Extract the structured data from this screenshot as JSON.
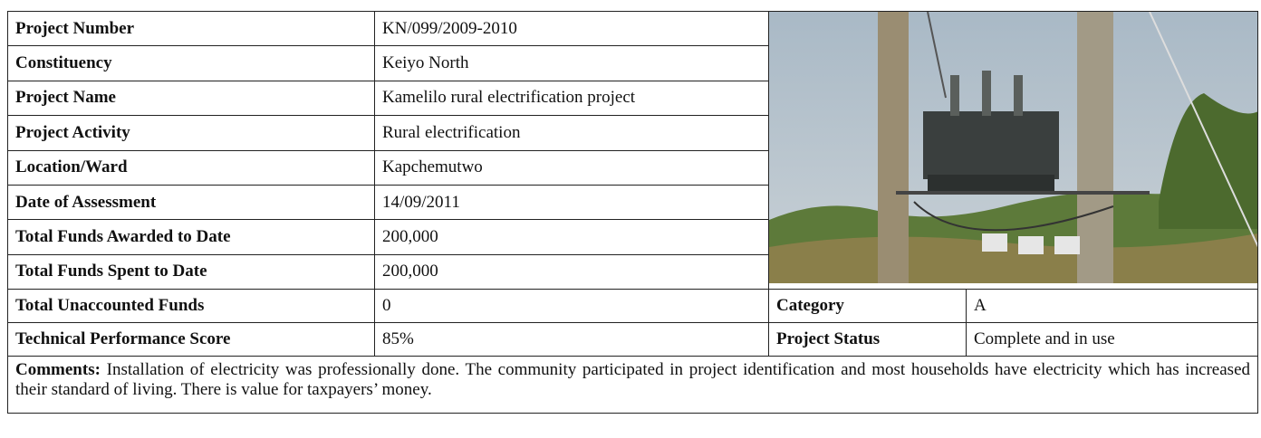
{
  "table": {
    "rows": [
      {
        "label": "Project Number",
        "value": "KN/099/2009-2010"
      },
      {
        "label": "Constituency",
        "value": "Keiyo North"
      },
      {
        "label": "Project Name",
        "value": "Kamelilo rural electrification project"
      },
      {
        "label": "Project Activity",
        "value": "Rural electrification"
      },
      {
        "label": "Location/Ward",
        "value": "Kapchemutwo"
      },
      {
        "label": "Date of Assessment",
        "value": "14/09/2011"
      },
      {
        "label": "Total Funds Awarded to Date",
        "value": "200,000"
      },
      {
        "label": "Total Funds Spent to Date",
        "value": "200,000"
      },
      {
        "label": "Total Unaccounted Funds",
        "value": "0"
      },
      {
        "label": "Technical Performance Score",
        "value": "85%"
      }
    ],
    "side": [
      {
        "label": "Category",
        "value": "A"
      },
      {
        "label": "Project Status",
        "value": "Complete and in use"
      }
    ],
    "comments": {
      "label": "Comments:",
      "text": "Installation of electricity was professionally done. The community participated in project identification and most households have electricity which has increased their standard of living. There is value for taxpayers’ money."
    }
  }
}
